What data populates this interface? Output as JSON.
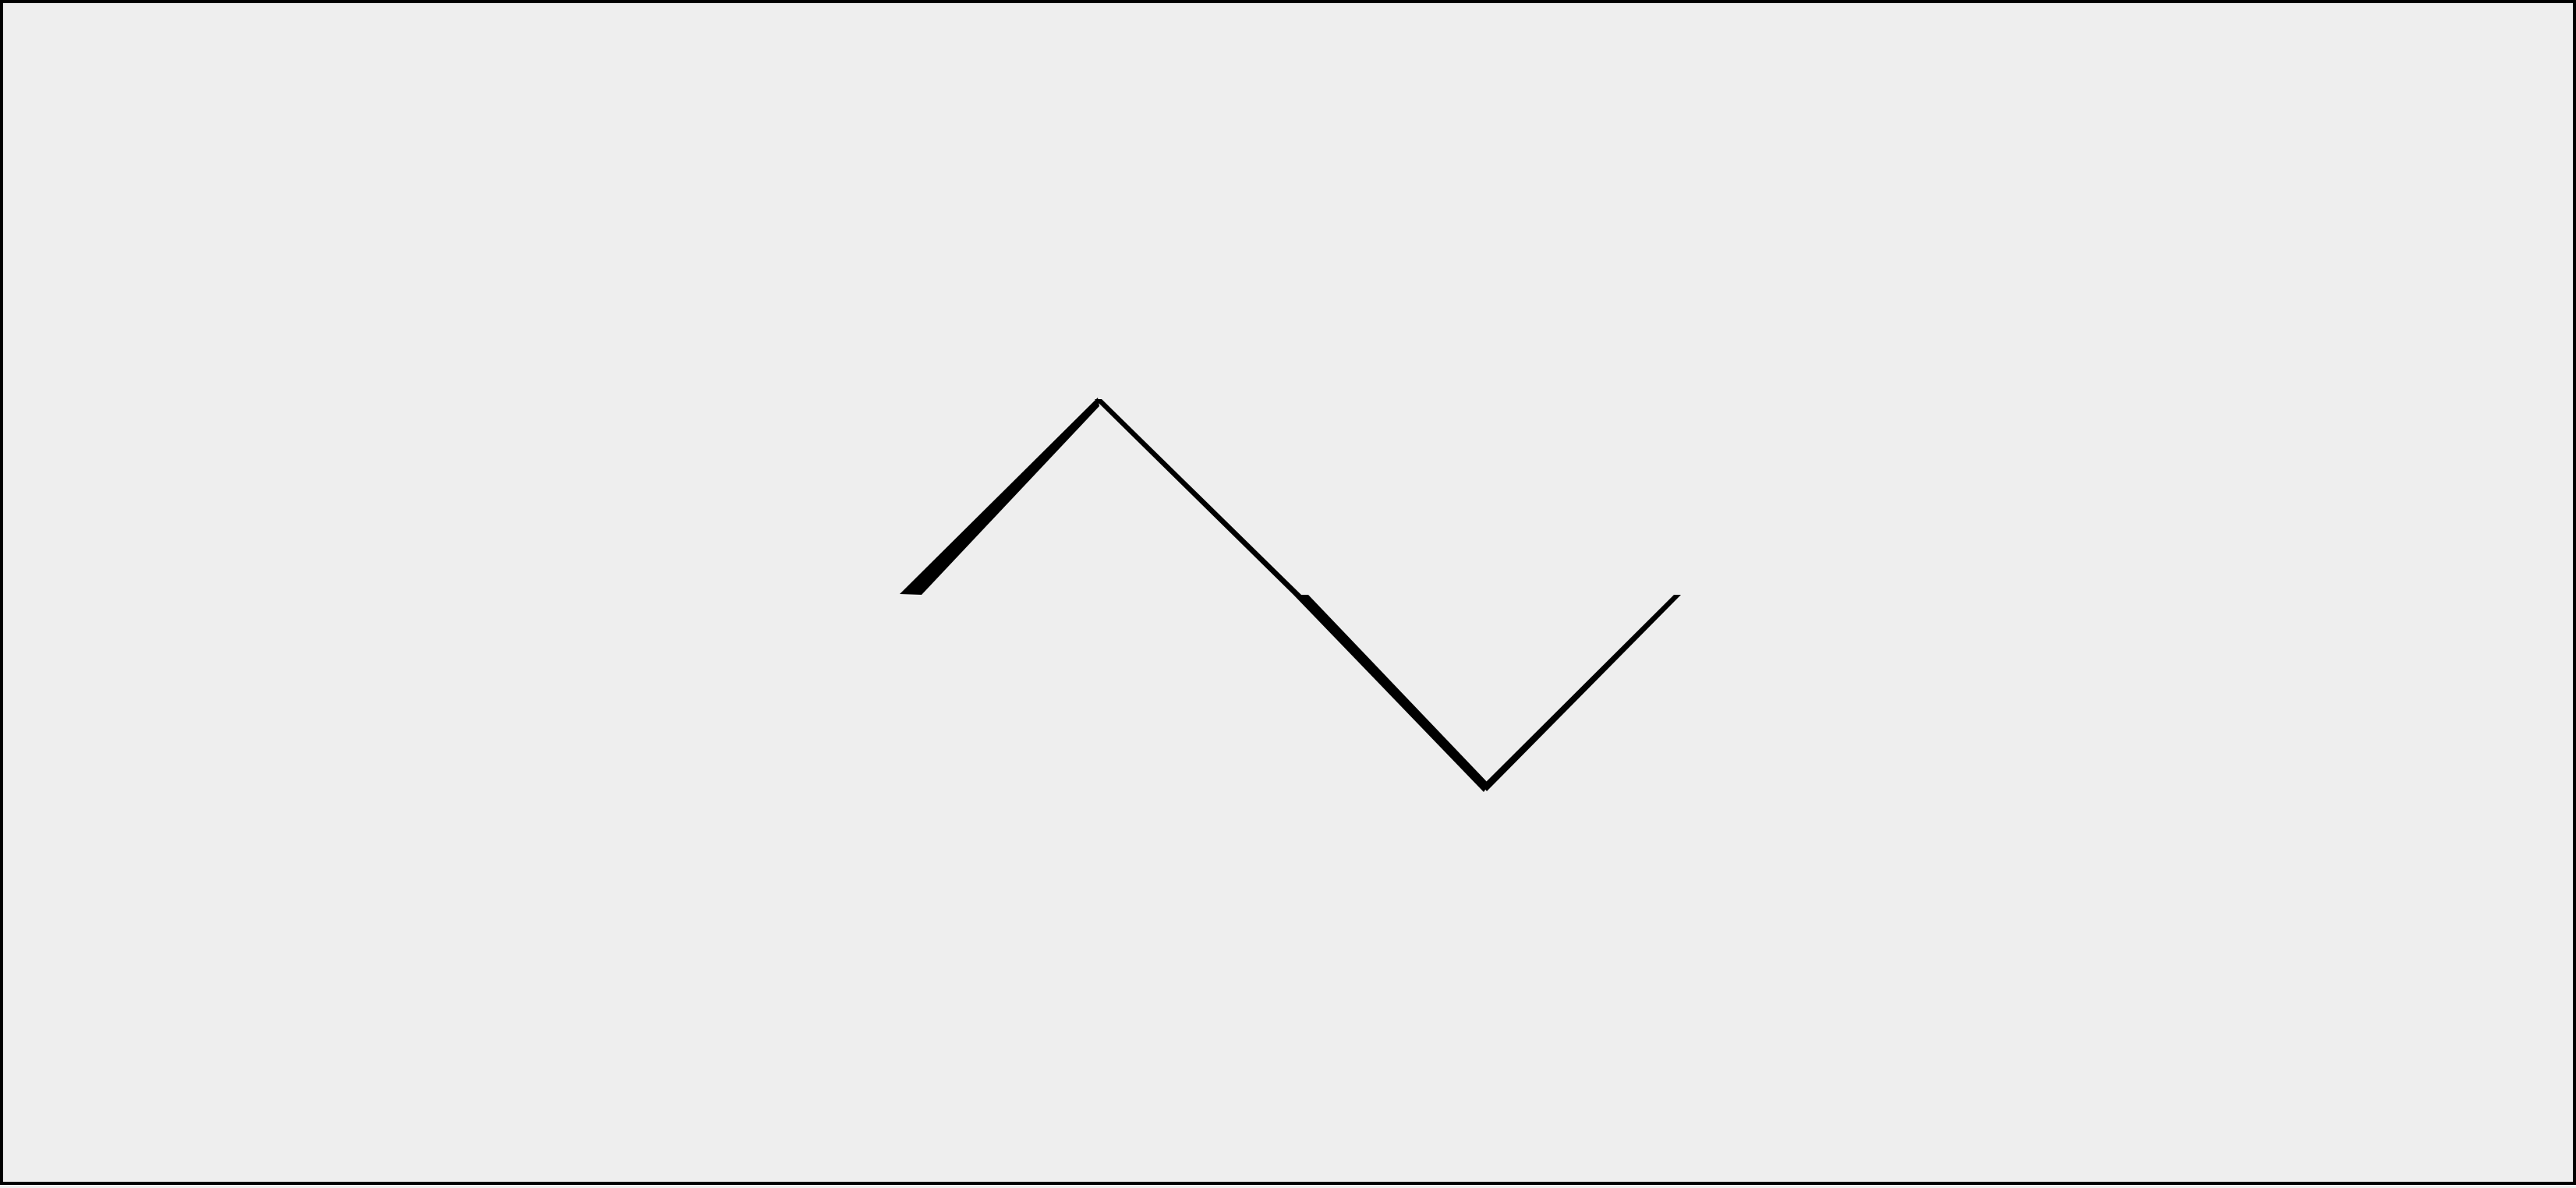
{
  "canvas": {
    "background": "#eeeeee",
    "border_color": "#000000"
  },
  "figure": {
    "shape": "zigzag-wave",
    "stroke_color": "#000000",
    "segments": 4,
    "style": "calligraphic"
  }
}
